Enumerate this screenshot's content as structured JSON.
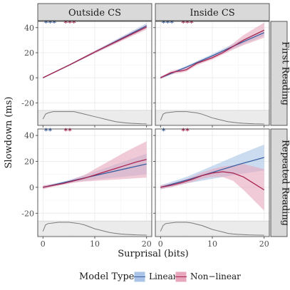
{
  "chart_data": {
    "type": "line",
    "xlabel": "Surprisal (bits)",
    "ylabel": "Slowdown (ms)",
    "xlim": [
      -1,
      21
    ],
    "ylim": [
      -38,
      45
    ],
    "x_ticks": [
      0,
      10,
      20
    ],
    "y_ticks": [
      -20,
      0,
      20,
      40
    ],
    "col_facets": [
      "Outside CS",
      "Inside CS"
    ],
    "row_facets": [
      "First Reading",
      "Repeated Reading"
    ],
    "legend": {
      "title": "Model Type",
      "position": "bottom",
      "entries": [
        {
          "name": "Linear",
          "color": "#3a5fa0",
          "fill": "#a9c4e6"
        },
        {
          "name": "Non−linear",
          "color": "#a8234f",
          "fill": "#e8a6bd"
        }
      ]
    },
    "density_box": {
      "y_top": -26,
      "y_bottom": -37
    },
    "panels": [
      {
        "row": 0,
        "col": 0,
        "sig_linear": "***",
        "sig_nonlinear": "***",
        "linear": {
          "x": [
            0,
            5,
            10,
            15,
            20
          ],
          "y": [
            0,
            10,
            20.5,
            31,
            41.5
          ],
          "lo": [
            -0.5,
            9.5,
            19.5,
            29.5,
            39.5
          ],
          "hi": [
            0.5,
            10.5,
            21.5,
            32.5,
            43.5
          ]
        },
        "nonlinear": {
          "x": [
            0,
            5,
            10,
            15,
            20
          ],
          "y": [
            0,
            10,
            20.5,
            30.5,
            40.5
          ],
          "lo": [
            -0.5,
            9.5,
            19.5,
            29,
            38.5
          ],
          "hi": [
            0.5,
            10.5,
            21.5,
            32,
            42.5
          ]
        },
        "density": {
          "x": [
            0,
            0.5,
            1,
            2,
            3,
            4,
            5,
            6,
            7,
            8,
            9,
            10,
            11,
            12,
            13,
            14,
            15,
            16,
            17,
            18,
            19,
            20
          ],
          "y": [
            -33,
            -29,
            -28,
            -27,
            -27,
            -27,
            -27,
            -27,
            -28,
            -29,
            -30,
            -31,
            -32,
            -33,
            -34,
            -35,
            -35.5,
            -36,
            -36.3,
            -36.5,
            -36.7,
            -36.8
          ]
        }
      },
      {
        "row": 0,
        "col": 1,
        "sig_linear": "***",
        "sig_nonlinear": "***",
        "linear": {
          "x": [
            0,
            5,
            10,
            15,
            20
          ],
          "y": [
            0,
            8.5,
            17.5,
            27,
            36
          ],
          "lo": [
            -1,
            7.5,
            16,
            25,
            33.5
          ],
          "hi": [
            1,
            9.5,
            19,
            29,
            38.5
          ]
        },
        "nonlinear": {
          "x": [
            0,
            1,
            2,
            3,
            4,
            5,
            6,
            7,
            8,
            10,
            12,
            14,
            16,
            18,
            20
          ],
          "y": [
            0,
            2,
            4,
            5,
            5.5,
            6.5,
            9,
            11.5,
            13,
            16,
            20,
            25,
            30,
            34,
            38
          ],
          "lo": [
            -1,
            1,
            2.5,
            3.5,
            4,
            5,
            7.5,
            10,
            11.5,
            14.5,
            18.5,
            22.5,
            26,
            29,
            32
          ],
          "hi": [
            1,
            3,
            5.5,
            6.5,
            7,
            8,
            10.5,
            13,
            14.5,
            17.5,
            21.5,
            27.5,
            34,
            39,
            44
          ]
        },
        "density": {
          "x": [
            0,
            0.5,
            1,
            2,
            3,
            4,
            5,
            6,
            7,
            8,
            9,
            10,
            11,
            12,
            13,
            14,
            15,
            16,
            17,
            18,
            19,
            20
          ],
          "y": [
            -34,
            -29,
            -28,
            -27.5,
            -27,
            -27,
            -27,
            -27.5,
            -28,
            -29,
            -30.5,
            -32,
            -33,
            -34,
            -35,
            -35.5,
            -36,
            -36.3,
            -36.5,
            -36.7,
            -36.8,
            -36.9
          ]
        }
      },
      {
        "row": 1,
        "col": 0,
        "sig_linear": "**",
        "sig_nonlinear": "**",
        "linear": {
          "x": [
            0,
            5,
            10,
            15,
            20
          ],
          "y": [
            0,
            4.5,
            9,
            13.5,
            18
          ],
          "lo": [
            -1,
            3.5,
            6,
            8,
            10
          ],
          "hi": [
            1,
            5.5,
            12,
            19,
            26
          ]
        },
        "nonlinear": {
          "x": [
            0,
            2,
            4,
            6,
            8,
            10,
            12,
            14,
            16,
            18,
            20
          ],
          "y": [
            0,
            1.5,
            3,
            5,
            7,
            9.5,
            12,
            14.5,
            17,
            19.5,
            21.5
          ],
          "lo": [
            -1.5,
            0.5,
            2,
            3.5,
            4.5,
            5,
            5.5,
            6,
            6.5,
            7,
            7.5
          ],
          "hi": [
            1.5,
            2.5,
            4,
            6.5,
            9.5,
            14,
            18.5,
            23,
            27.5,
            31.5,
            35.5
          ]
        },
        "density": {
          "x": [
            0,
            0.5,
            1,
            2,
            3,
            4,
            5,
            6,
            7,
            8,
            9,
            10,
            11,
            12,
            13,
            14,
            15,
            16,
            17,
            18,
            19,
            20
          ],
          "y": [
            -34,
            -29,
            -28,
            -27.5,
            -27,
            -27,
            -27,
            -27.5,
            -28,
            -29,
            -30.5,
            -32,
            -33,
            -34,
            -35,
            -35.5,
            -36,
            -36.3,
            -36.5,
            -36.7,
            -36.8,
            -36.9
          ]
        }
      },
      {
        "row": 1,
        "col": 1,
        "sig_linear": "*",
        "sig_nonlinear": "**",
        "linear": {
          "x": [
            0,
            5,
            10,
            15,
            20
          ],
          "y": [
            0,
            5.5,
            11.5,
            17.5,
            23
          ],
          "lo": [
            -1.5,
            3,
            6.5,
            10,
            13
          ],
          "hi": [
            1.5,
            8,
            16.5,
            25,
            33
          ]
        },
        "nonlinear": {
          "x": [
            0,
            2,
            4,
            6,
            8,
            10,
            12,
            14,
            16,
            18,
            20
          ],
          "y": [
            0,
            1.5,
            3.5,
            6,
            9,
            11,
            12,
            11,
            8,
            3,
            -2
          ],
          "lo": [
            -1.5,
            0,
            2,
            4,
            6.5,
            8,
            8,
            5,
            -2,
            -10,
            -18
          ],
          "hi": [
            1.5,
            3,
            5,
            8,
            11.5,
            14,
            16,
            17,
            18,
            16,
            14
          ]
        },
        "density": {
          "x": [
            0,
            0.5,
            1,
            2,
            3,
            4,
            5,
            6,
            7,
            8,
            9,
            10,
            11,
            12,
            13,
            14,
            15,
            16,
            17,
            18,
            19,
            20
          ],
          "y": [
            -34,
            -29.5,
            -28,
            -27.5,
            -27,
            -27,
            -27,
            -27.5,
            -28.5,
            -29.5,
            -31,
            -32.5,
            -33.5,
            -34.5,
            -35.5,
            -36,
            -36.3,
            -36.5,
            -36.7,
            -36.8,
            -36.9,
            -37
          ]
        }
      }
    ]
  }
}
